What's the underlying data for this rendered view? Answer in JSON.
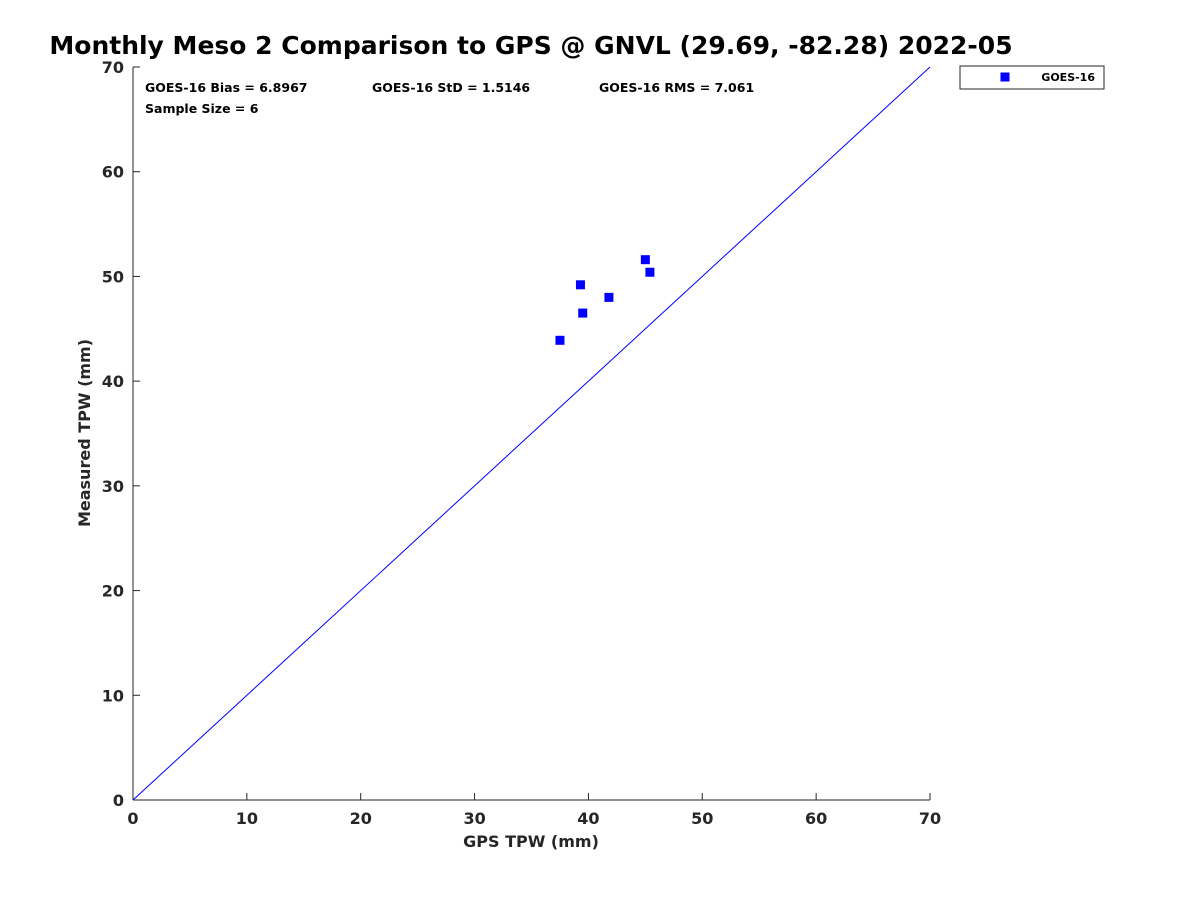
{
  "chart_data": {
    "type": "scatter",
    "title": "Monthly Meso 2 Comparison to GPS @ GNVL (29.69, -82.28) 2022-05",
    "xlabel": "GPS TPW (mm)",
    "ylabel": "Measured TPW (mm)",
    "xlim": [
      0,
      70
    ],
    "ylim": [
      0,
      70
    ],
    "xticks": [
      0,
      10,
      20,
      30,
      40,
      50,
      60,
      70
    ],
    "yticks": [
      0,
      10,
      20,
      30,
      40,
      50,
      60,
      70
    ],
    "grid": false,
    "legend_position": "outside top-right",
    "series": [
      {
        "name": "GOES-16",
        "color": "#0000ff",
        "marker": "square",
        "x": [
          37.5,
          39.3,
          39.5,
          41.8,
          45.0,
          45.4
        ],
        "y": [
          43.9,
          49.2,
          46.5,
          48.0,
          51.6,
          50.4
        ]
      }
    ],
    "reference_line": {
      "x": [
        0,
        70
      ],
      "y": [
        0,
        70
      ],
      "color": "#0000ff"
    },
    "annotations": [
      "GOES-16 Bias = 6.8967",
      "GOES-16 StD = 1.5146",
      "GOES-16 RMS = 7.061",
      "Sample Size = 6"
    ]
  }
}
